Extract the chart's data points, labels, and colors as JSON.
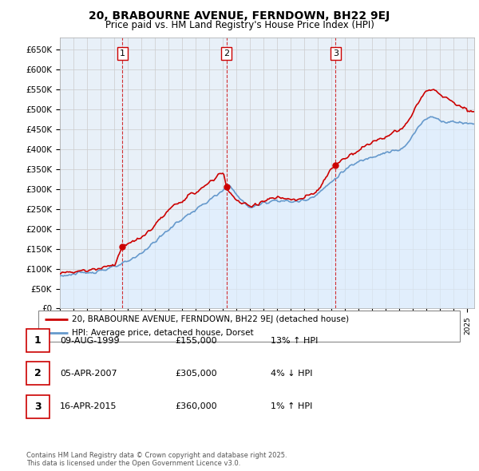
{
  "title": "20, BRABOURNE AVENUE, FERNDOWN, BH22 9EJ",
  "subtitle": "Price paid vs. HM Land Registry's House Price Index (HPI)",
  "ylabel_ticks": [
    "£0",
    "£50K",
    "£100K",
    "£150K",
    "£200K",
    "£250K",
    "£300K",
    "£350K",
    "£400K",
    "£450K",
    "£500K",
    "£550K",
    "£600K",
    "£650K"
  ],
  "ylim": [
    0,
    680000
  ],
  "ytick_values": [
    0,
    50000,
    100000,
    150000,
    200000,
    250000,
    300000,
    350000,
    400000,
    450000,
    500000,
    550000,
    600000,
    650000
  ],
  "xmin": 1995.0,
  "xmax": 2025.5,
  "sale_dates": [
    1999.6,
    2007.27,
    2015.29
  ],
  "sale_prices": [
    155000,
    305000,
    360000
  ],
  "sale_labels": [
    "1",
    "2",
    "3"
  ],
  "legend_line1": "20, BRABOURNE AVENUE, FERNDOWN, BH22 9EJ (detached house)",
  "legend_line2": "HPI: Average price, detached house, Dorset",
  "table_rows": [
    {
      "num": "1",
      "date": "09-AUG-1999",
      "price": "£155,000",
      "hpi": "13% ↑ HPI"
    },
    {
      "num": "2",
      "date": "05-APR-2007",
      "price": "£305,000",
      "hpi": "4% ↓ HPI"
    },
    {
      "num": "3",
      "date": "16-APR-2015",
      "price": "£360,000",
      "hpi": "1% ↑ HPI"
    }
  ],
  "footnote": "Contains HM Land Registry data © Crown copyright and database right 2025.\nThis data is licensed under the Open Government Licence v3.0.",
  "red_color": "#cc0000",
  "blue_color": "#6699cc",
  "blue_fill": "#ddeeff",
  "grid_color": "#cccccc",
  "bg_color": "#e8f0f8",
  "plot_bg": "#e8f0f8"
}
